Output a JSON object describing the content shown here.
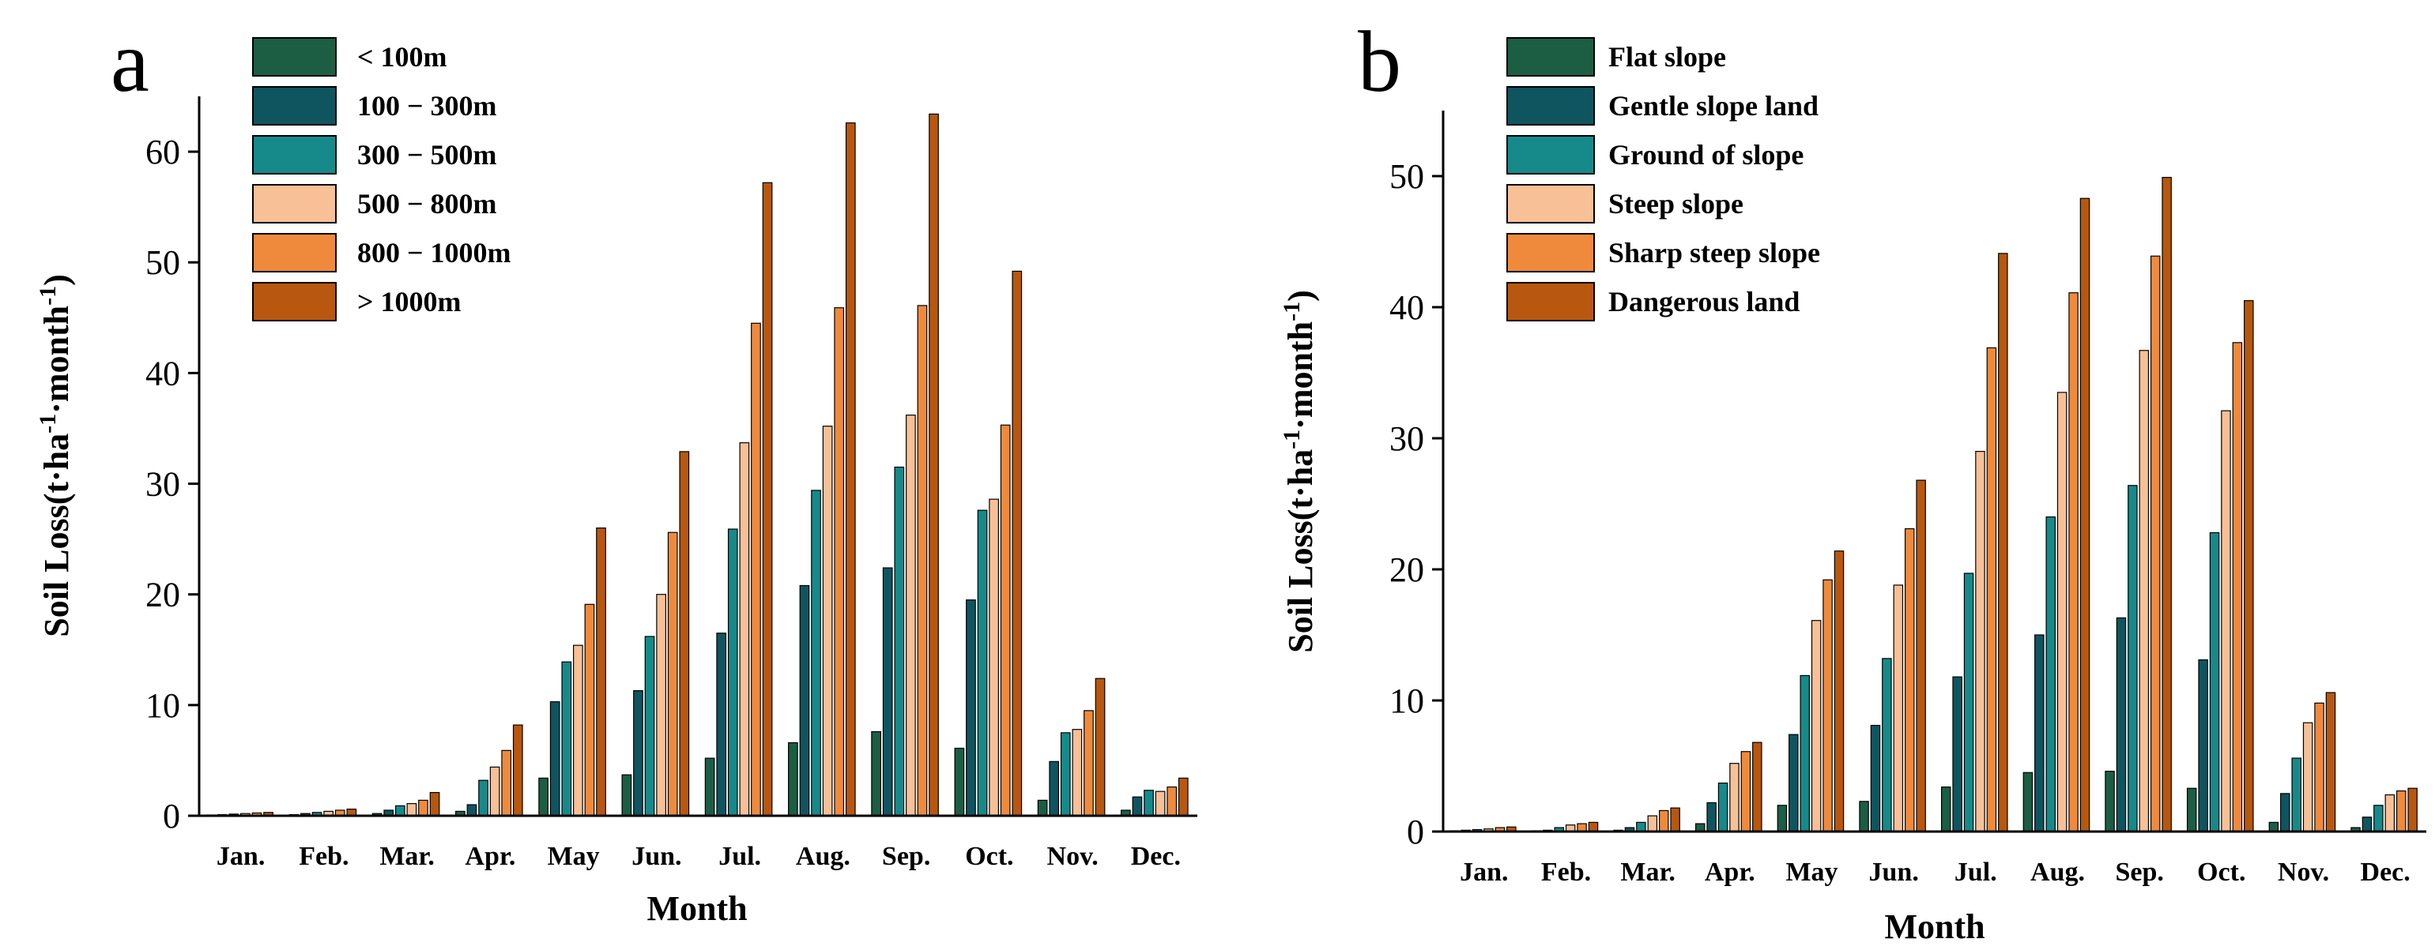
{
  "colors": {
    "series_1": "#1b5e44",
    "series_2": "#0f5560",
    "series_3": "#168a8a",
    "series_4": "#f7c096",
    "series_5": "#ef8a3c",
    "series_6": "#b8570f",
    "axis": "#000000"
  },
  "chart_data": [
    {
      "panel": "a",
      "type": "bar",
      "xlabel": "Month",
      "ylabel_main": "Soil Loss(t·ha",
      "ylabel_sup1": "-1",
      "ylabel_mid": "·month",
      "ylabel_sup2": "-1",
      "ylabel_end": ")",
      "ylim": [
        0,
        65
      ],
      "yticks": [
        0,
        10,
        20,
        30,
        40,
        50,
        60
      ],
      "ytick_labels": [
        "0",
        "10",
        "20",
        "30",
        "40",
        "50",
        "60"
      ],
      "legend_position": "top-left",
      "categories": [
        "Jan.",
        "Feb.",
        "Mar.",
        "Apr.",
        "May",
        "Jun.",
        "Jul.",
        "Aug.",
        "Sep.",
        "Oct.",
        "Nov.",
        "Dec."
      ],
      "series": [
        {
          "name": "< 100m",
          "values": [
            0.05,
            0.1,
            0.2,
            0.4,
            3.4,
            3.7,
            5.2,
            6.6,
            7.6,
            6.1,
            1.4,
            0.5
          ]
        },
        {
          "name": "100 − 300m",
          "values": [
            0.1,
            0.2,
            0.5,
            1.0,
            10.3,
            11.3,
            16.5,
            20.8,
            22.4,
            19.5,
            4.9,
            1.7
          ]
        },
        {
          "name": "300 − 500m",
          "values": [
            0.15,
            0.3,
            0.9,
            3.2,
            13.9,
            16.2,
            25.9,
            29.4,
            31.5,
            27.6,
            7.5,
            2.3
          ]
        },
        {
          "name": "500 − 800m",
          "values": [
            0.2,
            0.4,
            1.1,
            4.4,
            15.4,
            20.0,
            33.7,
            35.2,
            36.2,
            28.6,
            7.8,
            2.2
          ]
        },
        {
          "name": "800 − 1000m",
          "values": [
            0.25,
            0.5,
            1.4,
            5.9,
            19.1,
            25.6,
            44.5,
            45.9,
            46.1,
            35.3,
            9.5,
            2.6
          ]
        },
        {
          "name": "> 1000m",
          "values": [
            0.3,
            0.6,
            2.1,
            8.2,
            26.0,
            32.9,
            57.2,
            62.6,
            63.4,
            49.2,
            12.4,
            3.4
          ]
        }
      ]
    },
    {
      "panel": "b",
      "type": "bar",
      "xlabel": "Month",
      "ylabel_main": "Soil Loss(t·ha",
      "ylabel_sup1": "-1",
      "ylabel_mid": "·month",
      "ylabel_sup2": "-1",
      "ylabel_end": ")",
      "ylim": [
        0,
        55
      ],
      "yticks": [
        0,
        10,
        20,
        30,
        40,
        50
      ],
      "ytick_labels": [
        "0",
        "10",
        "20",
        "30",
        "40",
        "50"
      ],
      "legend_position": "top-left",
      "categories": [
        "Jan.",
        "Feb.",
        "Mar.",
        "Apr.",
        "May",
        "Jun.",
        "Jul.",
        "Aug.",
        "Sep.",
        "Oct.",
        "Nov.",
        "Dec."
      ],
      "series": [
        {
          "name": "Flat slope",
          "values": [
            0.05,
            0.05,
            0.1,
            0.6,
            2.0,
            2.3,
            3.4,
            4.5,
            4.6,
            3.3,
            0.7,
            0.3
          ]
        },
        {
          "name": "Gentle slope land",
          "values": [
            0.1,
            0.1,
            0.3,
            2.2,
            7.4,
            8.1,
            11.8,
            15.0,
            16.3,
            13.1,
            2.9,
            1.1
          ]
        },
        {
          "name": "Ground of slope",
          "values": [
            0.15,
            0.3,
            0.7,
            3.7,
            11.9,
            13.2,
            19.7,
            24.0,
            26.4,
            22.8,
            5.6,
            2.0
          ]
        },
        {
          "name": "Steep slope",
          "values": [
            0.2,
            0.5,
            1.2,
            5.2,
            16.1,
            18.8,
            29.0,
            33.5,
            36.7,
            32.1,
            8.3,
            2.8
          ]
        },
        {
          "name": "Sharp steep slope",
          "values": [
            0.3,
            0.6,
            1.6,
            6.1,
            19.2,
            23.1,
            36.9,
            41.1,
            43.9,
            37.3,
            9.8,
            3.1
          ]
        },
        {
          "name": "Dangerous land",
          "values": [
            0.35,
            0.7,
            1.8,
            6.8,
            21.4,
            26.8,
            44.1,
            48.3,
            49.9,
            40.5,
            10.6,
            3.3
          ]
        }
      ]
    }
  ]
}
